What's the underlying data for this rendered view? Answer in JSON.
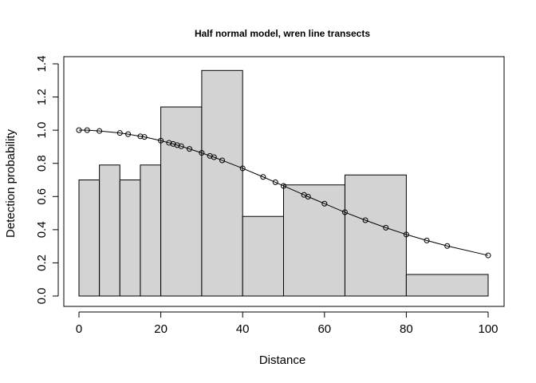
{
  "chart_data": {
    "type": "bar",
    "title": "Half normal model, wren line transects",
    "xlabel": "Distance",
    "ylabel": "Detection probability",
    "xlim": [
      0,
      100
    ],
    "ylim": [
      0,
      1.4
    ],
    "x_ticks": [
      "0",
      "20",
      "40",
      "60",
      "80",
      "100"
    ],
    "y_ticks": [
      "0.0",
      "0.2",
      "0.4",
      "0.6",
      "0.8",
      "1.0",
      "1.2",
      "1.4"
    ],
    "bar_fill": "#d3d3d3",
    "bar_stroke": "#000000",
    "histogram_bins": [
      {
        "from": 0,
        "to": 5,
        "value": 0.7
      },
      {
        "from": 5,
        "to": 10,
        "value": 0.79
      },
      {
        "from": 10,
        "to": 15,
        "value": 0.7
      },
      {
        "from": 15,
        "to": 20,
        "value": 0.79
      },
      {
        "from": 20,
        "to": 30,
        "value": 1.14
      },
      {
        "from": 30,
        "to": 40,
        "value": 1.36
      },
      {
        "from": 40,
        "to": 50,
        "value": 0.48
      },
      {
        "from": 50,
        "to": 65,
        "value": 0.67
      },
      {
        "from": 65,
        "to": 80,
        "value": 0.73
      },
      {
        "from": 80,
        "to": 100,
        "value": 0.13
      }
    ],
    "detection_curve": {
      "x": [
        0,
        2,
        5,
        10,
        12,
        15,
        16,
        20,
        22,
        23,
        24,
        25,
        27,
        30,
        32,
        33,
        35,
        40,
        45,
        48,
        50,
        55,
        56,
        60,
        65,
        70,
        75,
        80,
        85,
        90,
        100
      ],
      "y": [
        1.0,
        1.0,
        0.995,
        0.983,
        0.976,
        0.963,
        0.959,
        0.937,
        0.924,
        0.917,
        0.91,
        0.903,
        0.887,
        0.863,
        0.845,
        0.837,
        0.818,
        0.77,
        0.718,
        0.686,
        0.664,
        0.61,
        0.599,
        0.557,
        0.505,
        0.457,
        0.412,
        0.371,
        0.335,
        0.302,
        0.245
      ]
    }
  }
}
